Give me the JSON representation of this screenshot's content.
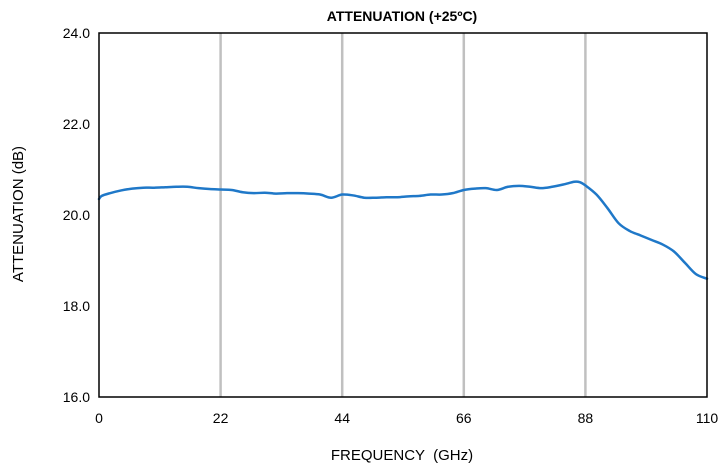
{
  "chart_data": {
    "type": "line",
    "title": "ATTENUATION (+25ºC)",
    "xlabel": "FREQUENCY  (GHz)",
    "ylabel": "ATTENUATION (dB)",
    "xlim": [
      0,
      110
    ],
    "ylim": [
      16.0,
      24.0
    ],
    "x_ticks": [
      0,
      22,
      44,
      66,
      88,
      110
    ],
    "y_ticks": [
      16.0,
      18.0,
      20.0,
      22.0,
      24.0
    ],
    "x_tick_labels": [
      "0",
      "22",
      "44",
      "66",
      "88",
      "110"
    ],
    "y_tick_labels": [
      "16.0",
      "18.0",
      "20.0",
      "22.0",
      "24.0"
    ],
    "grid": "vertical",
    "series": [
      {
        "color": "#1f78c8",
        "x": [
          0,
          0.5,
          2,
          4,
          6,
          8,
          10,
          12,
          14,
          16,
          18,
          20,
          22,
          24,
          26,
          28,
          30,
          32,
          34,
          36,
          38,
          40,
          42,
          44,
          46,
          48,
          50,
          52,
          54,
          56,
          58,
          60,
          62,
          64,
          66,
          68,
          70,
          72,
          74,
          76,
          78,
          80,
          82,
          84,
          86,
          87,
          88,
          90,
          92,
          94,
          96,
          98,
          100,
          102,
          104,
          106,
          108,
          110
        ],
        "y": [
          20.35,
          20.42,
          20.48,
          20.54,
          20.58,
          20.6,
          20.6,
          20.61,
          20.62,
          20.62,
          20.59,
          20.57,
          20.56,
          20.55,
          20.5,
          20.48,
          20.49,
          20.47,
          20.48,
          20.48,
          20.47,
          20.45,
          20.38,
          20.45,
          20.43,
          20.38,
          20.38,
          20.39,
          20.39,
          20.41,
          20.42,
          20.45,
          20.45,
          20.48,
          20.55,
          20.58,
          20.59,
          20.55,
          20.62,
          20.64,
          20.62,
          20.59,
          20.62,
          20.67,
          20.73,
          20.72,
          20.65,
          20.45,
          20.15,
          19.82,
          19.65,
          19.55,
          19.45,
          19.35,
          19.2,
          18.95,
          18.7,
          18.6
        ]
      }
    ]
  },
  "colors": {
    "line": "#1f78c8",
    "grid": "#c0c0c0",
    "frame": "#000000",
    "background": "#ffffff"
  }
}
